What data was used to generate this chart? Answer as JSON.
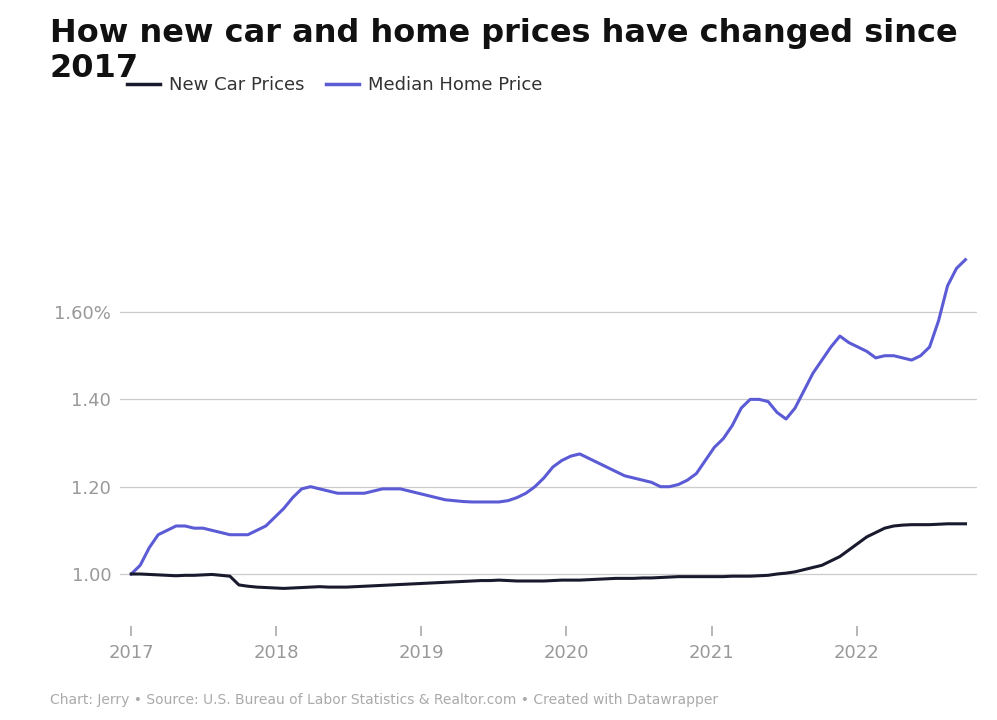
{
  "title_line1": "How new car and home prices have changed since",
  "title_line2": "2017",
  "caption": "Chart: Jerry • Source: U.S. Bureau of Labor Statistics & Realtor.com • Created with Datawrapper",
  "legend": [
    "New Car Prices",
    "Median Home Price"
  ],
  "car_color": "#1a1a2e",
  "home_color": "#5b5bd6",
  "background_color": "#ffffff",
  "grid_color": "#cccccc",
  "ylim": [
    0.88,
    1.82
  ],
  "yticks": [
    1.0,
    1.2,
    1.4,
    1.6
  ],
  "ytick_labels": [
    "1.00",
    "1.20",
    "1.40",
    "1.60%"
  ],
  "year_ticks": [
    2017,
    2018,
    2019,
    2020,
    2021,
    2022
  ],
  "start_year": 2017.0,
  "end_year": 2022.75,
  "car_prices": [
    1.0,
    1.0,
    0.999,
    0.998,
    0.997,
    0.996,
    0.997,
    0.997,
    0.998,
    0.999,
    0.997,
    0.995,
    0.975,
    0.972,
    0.97,
    0.969,
    0.968,
    0.967,
    0.968,
    0.969,
    0.97,
    0.971,
    0.97,
    0.97,
    0.97,
    0.971,
    0.972,
    0.973,
    0.974,
    0.975,
    0.976,
    0.977,
    0.978,
    0.979,
    0.98,
    0.981,
    0.982,
    0.983,
    0.984,
    0.985,
    0.985,
    0.986,
    0.985,
    0.984,
    0.984,
    0.984,
    0.984,
    0.985,
    0.986,
    0.986,
    0.986,
    0.987,
    0.988,
    0.989,
    0.99,
    0.99,
    0.99,
    0.991,
    0.991,
    0.992,
    0.993,
    0.994,
    0.994,
    0.994,
    0.994,
    0.994,
    0.994,
    0.995,
    0.995,
    0.995,
    0.996,
    0.997,
    1.0,
    1.002,
    1.005,
    1.01,
    1.015,
    1.02,
    1.03,
    1.04,
    1.055,
    1.07,
    1.085,
    1.095,
    1.105,
    1.11,
    1.112,
    1.113,
    1.113,
    1.113,
    1.114,
    1.115,
    1.115,
    1.115
  ],
  "home_prices": [
    1.0,
    1.02,
    1.06,
    1.09,
    1.1,
    1.11,
    1.11,
    1.105,
    1.105,
    1.1,
    1.095,
    1.09,
    1.09,
    1.09,
    1.1,
    1.11,
    1.13,
    1.15,
    1.175,
    1.195,
    1.2,
    1.195,
    1.19,
    1.185,
    1.185,
    1.185,
    1.185,
    1.19,
    1.195,
    1.195,
    1.195,
    1.19,
    1.185,
    1.18,
    1.175,
    1.17,
    1.168,
    1.166,
    1.165,
    1.165,
    1.165,
    1.165,
    1.168,
    1.175,
    1.185,
    1.2,
    1.22,
    1.245,
    1.26,
    1.27,
    1.275,
    1.265,
    1.255,
    1.245,
    1.235,
    1.225,
    1.22,
    1.215,
    1.21,
    1.2,
    1.2,
    1.205,
    1.215,
    1.23,
    1.26,
    1.29,
    1.31,
    1.34,
    1.38,
    1.4,
    1.4,
    1.395,
    1.37,
    1.355,
    1.38,
    1.42,
    1.46,
    1.49,
    1.52,
    1.545,
    1.53,
    1.52,
    1.51,
    1.495,
    1.5,
    1.5,
    1.495,
    1.49,
    1.5,
    1.52,
    1.58,
    1.66,
    1.7,
    1.72
  ],
  "n_points": 94
}
